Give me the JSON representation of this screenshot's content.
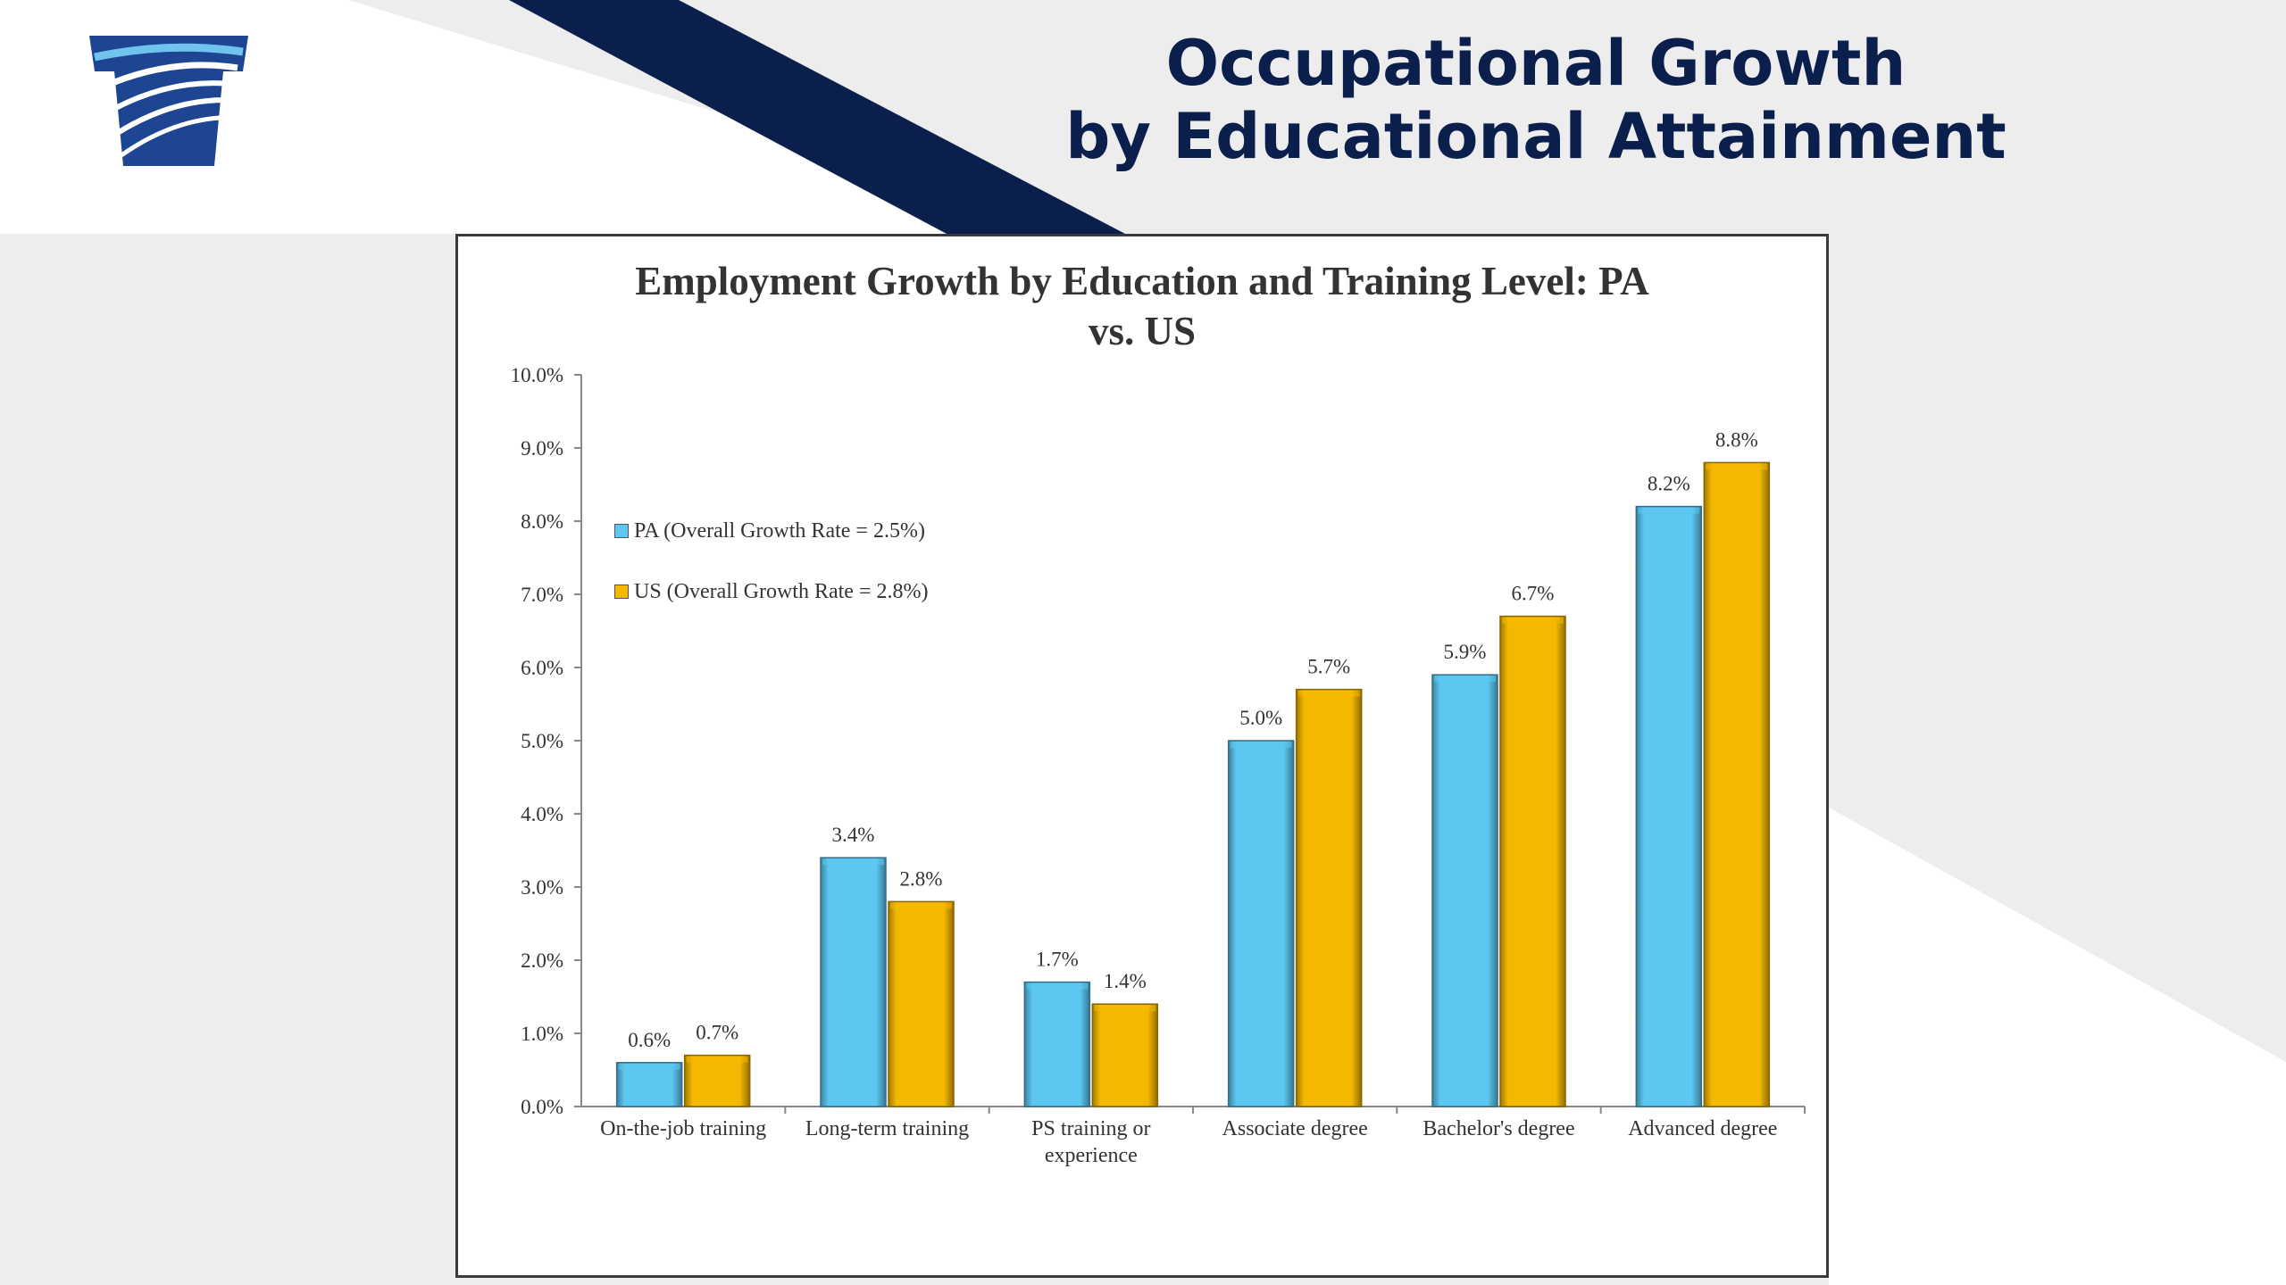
{
  "slide": {
    "title_line1": "Occupational Growth",
    "title_line2": "by Educational Attainment",
    "logo_icon": "keystone-logo-icon"
  },
  "colors": {
    "navy": "#0b1f4d",
    "pa_bar": "#5cc8f2",
    "us_bar": "#f5b800"
  },
  "chart_data": {
    "type": "bar",
    "title_line1": "Employment Growth by Education and Training Level: PA",
    "title_line2": "vs. US",
    "categories": [
      [
        "On-the-job training"
      ],
      [
        "Long-term training"
      ],
      [
        "PS training or",
        "experience"
      ],
      [
        "Associate degree"
      ],
      [
        "Bachelor's degree"
      ],
      [
        "Advanced degree"
      ]
    ],
    "series": [
      {
        "name": "PA (Overall Growth Rate = 2.5%)",
        "values": [
          0.6,
          3.4,
          1.7,
          5.0,
          5.9,
          8.2
        ],
        "labels": [
          "0.6%",
          "3.4%",
          "1.7%",
          "5.0%",
          "5.9%",
          "8.2%"
        ],
        "color": "#5cc8f2"
      },
      {
        "name": "US (Overall Growth Rate = 2.8%)",
        "values": [
          0.7,
          2.8,
          1.4,
          5.7,
          6.7,
          8.8
        ],
        "labels": [
          "0.7%",
          "2.8%",
          "1.4%",
          "5.7%",
          "6.7%",
          "8.8%"
        ],
        "color": "#f5b800"
      }
    ],
    "y_ticks": [
      "0.0%",
      "1.0%",
      "2.0%",
      "3.0%",
      "4.0%",
      "5.0%",
      "6.0%",
      "7.0%",
      "8.0%",
      "9.0%",
      "10.0%"
    ],
    "ylim": [
      0,
      10
    ],
    "grid": false,
    "legend_position": "top-left"
  }
}
